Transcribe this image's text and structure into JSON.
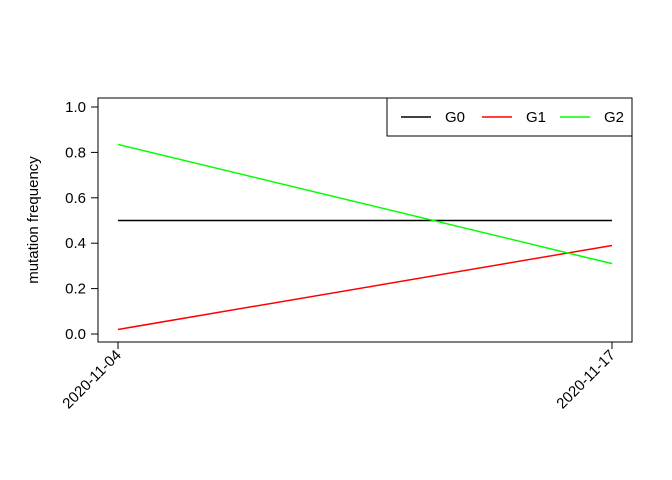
{
  "chart_data": {
    "type": "line",
    "title": "",
    "xlabel": "",
    "ylabel": "mutation frequency",
    "x": [
      "2020-11-04",
      "2020-11-17"
    ],
    "xticks": [
      "2020-11-04",
      "2020-11-17"
    ],
    "ylim": [
      0,
      1
    ],
    "yticks": [
      "0.0",
      "0.2",
      "0.4",
      "0.6",
      "0.8",
      "1.0"
    ],
    "grid": false,
    "legend": "top-right",
    "series": [
      {
        "name": "G0",
        "color": "#000000",
        "values": [
          0.5,
          0.5
        ]
      },
      {
        "name": "G1",
        "color": "#ff0000",
        "values": [
          0.02,
          0.39
        ]
      },
      {
        "name": "G2",
        "color": "#00ff00",
        "values": [
          0.835,
          0.31
        ]
      }
    ]
  }
}
